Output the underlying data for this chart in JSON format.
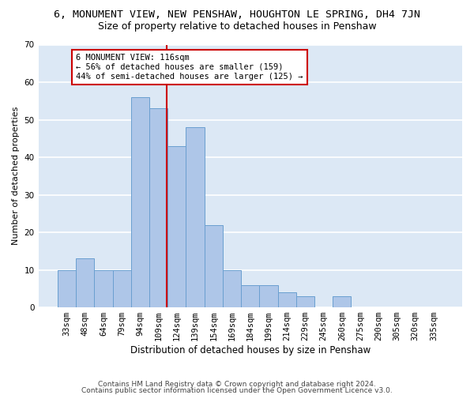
{
  "title1": "6, MONUMENT VIEW, NEW PENSHAW, HOUGHTON LE SPRING, DH4 7JN",
  "title2": "Size of property relative to detached houses in Penshaw",
  "xlabel": "Distribution of detached houses by size in Penshaw",
  "ylabel": "Number of detached properties",
  "categories": [
    "33sqm",
    "48sqm",
    "64sqm",
    "79sqm",
    "94sqm",
    "109sqm",
    "124sqm",
    "139sqm",
    "154sqm",
    "169sqm",
    "184sqm",
    "199sqm",
    "214sqm",
    "229sqm",
    "245sqm",
    "260sqm",
    "275sqm",
    "290sqm",
    "305sqm",
    "320sqm",
    "335sqm"
  ],
  "values": [
    10,
    13,
    10,
    10,
    56,
    53,
    43,
    48,
    22,
    10,
    6,
    6,
    4,
    3,
    0,
    3,
    0,
    0,
    0,
    0,
    0
  ],
  "bar_color": "#aec6e8",
  "bar_edgecolor": "#6a9fd0",
  "vline_color": "#cc0000",
  "annotation_text": "6 MONUMENT VIEW: 116sqm\n← 56% of detached houses are smaller (159)\n44% of semi-detached houses are larger (125) →",
  "annotation_box_color": "#ffffff",
  "annotation_box_edgecolor": "#cc0000",
  "ylim": [
    0,
    70
  ],
  "yticks": [
    0,
    10,
    20,
    30,
    40,
    50,
    60,
    70
  ],
  "bg_color": "#dce8f5",
  "grid_color": "#ffffff",
  "footer1": "Contains HM Land Registry data © Crown copyright and database right 2024.",
  "footer2": "Contains public sector information licensed under the Open Government Licence v3.0.",
  "title1_fontsize": 9.5,
  "title2_fontsize": 9,
  "xlabel_fontsize": 8.5,
  "ylabel_fontsize": 8,
  "tick_fontsize": 7.5,
  "annotation_fontsize": 7.5,
  "footer_fontsize": 6.5
}
